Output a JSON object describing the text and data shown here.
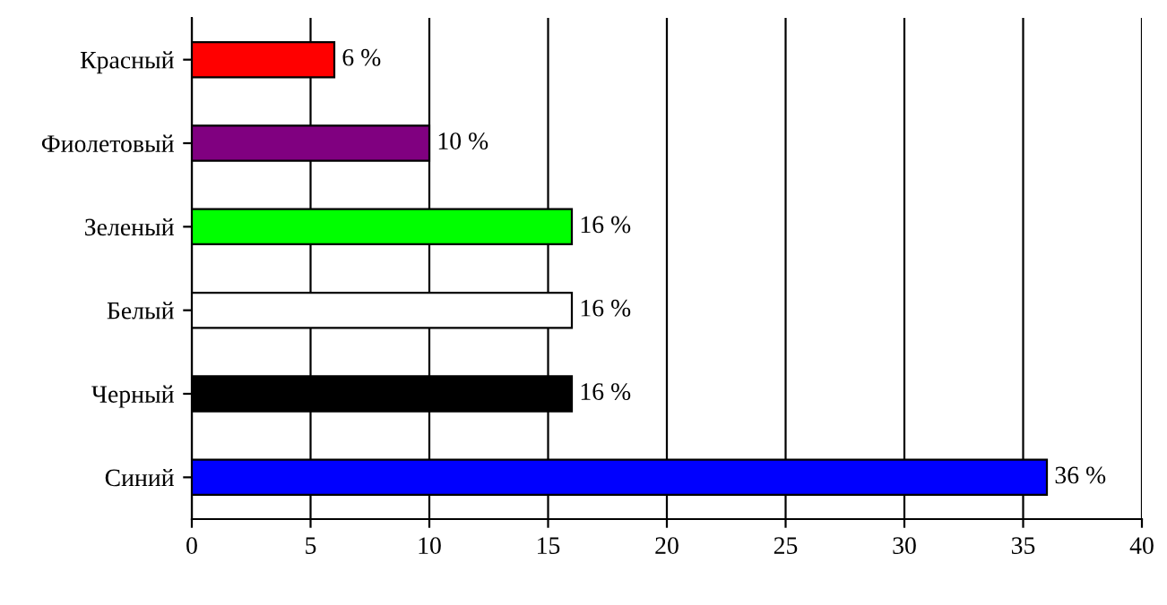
{
  "chart_data": {
    "type": "bar",
    "orientation": "horizontal",
    "categories": [
      "Красный",
      "Фиолетовый",
      "Зеленый",
      "Белый",
      "Черный",
      "Синий"
    ],
    "values": [
      6,
      10,
      16,
      16,
      16,
      36
    ],
    "colors": [
      "#ff0000",
      "#800080",
      "#00ff00",
      "#ffffff",
      "#000000",
      "#0000ff"
    ],
    "value_labels": [
      "6 %",
      "10 %",
      "16 %",
      "16 %",
      "16 %",
      "36 %"
    ],
    "xlim": [
      0,
      40
    ],
    "xticks": [
      0,
      5,
      10,
      15,
      20,
      25,
      30,
      35,
      40
    ],
    "grid": "x",
    "legend": false
  }
}
